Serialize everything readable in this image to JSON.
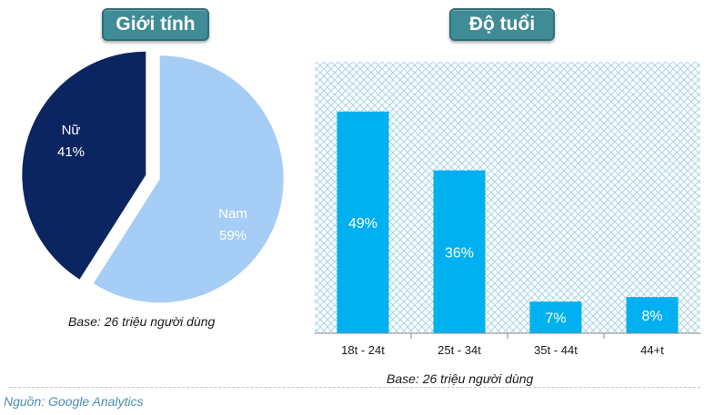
{
  "titles": {
    "gender": "Giới tính",
    "age": "Độ tuổi"
  },
  "captions": {
    "pie_base": "Base: 26 triệu người dùng",
    "bar_base": "Base: 26 triệu người dùng",
    "source": "Nguồn: Google Analytics"
  },
  "colors": {
    "title_bg": "#3f8c97",
    "female": "#0b2560",
    "male": "#a5cdf6",
    "bar": "#00b0f0",
    "hatch": "#a9d4e6"
  },
  "chart_data": [
    {
      "type": "pie",
      "title": "Giới tính",
      "slices": [
        {
          "label": "Nữ",
          "value": 41,
          "display": "41%",
          "color": "#0b2560"
        },
        {
          "label": "Nam",
          "value": 59,
          "display": "59%",
          "color": "#a5cdf6"
        }
      ]
    },
    {
      "type": "bar",
      "title": "Độ tuổi",
      "categories": [
        "18t - 24t",
        "25t - 34t",
        "35t - 44t",
        "44+t"
      ],
      "values": [
        49,
        36,
        7,
        8
      ],
      "data_labels": [
        "49%",
        "36%",
        "7%",
        "8%"
      ],
      "ylim": [
        0,
        60
      ],
      "background": "crosshatch",
      "grid": false
    }
  ]
}
